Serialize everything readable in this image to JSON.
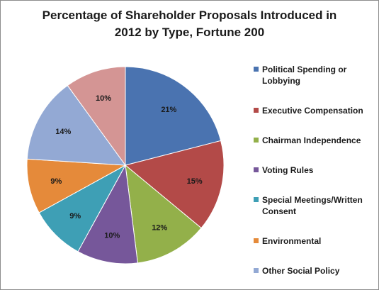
{
  "chart_data": {
    "type": "pie",
    "title_lines": [
      "Percentage of Shareholder Proposals Introduced in",
      "2012 by Type, Fortune 200"
    ],
    "slices": [
      {
        "name": "Political Spending or Lobbying",
        "legend_lines": [
          "Political Spending or",
          "Lobbying"
        ],
        "value": 21,
        "label": "21%",
        "color": "#4a73b0"
      },
      {
        "name": "Executive Compensation",
        "legend_lines": [
          "Executive Compensation"
        ],
        "value": 15,
        "label": "15%",
        "color": "#b34a48"
      },
      {
        "name": "Chairman Independence",
        "legend_lines": [
          "Chairman Independence"
        ],
        "value": 12,
        "label": "12%",
        "color": "#93b04a"
      },
      {
        "name": "Voting Rules",
        "legend_lines": [
          "Voting Rules"
        ],
        "value": 10,
        "label": "10%",
        "color": "#76579a"
      },
      {
        "name": "Special Meetings/Written Consent",
        "legend_lines": [
          "Special Meetings/Written",
          "Consent"
        ],
        "value": 9,
        "label": "9%",
        "color": "#3e9fb5"
      },
      {
        "name": "Environmental",
        "legend_lines": [
          "Environmental"
        ],
        "value": 9,
        "label": "9%",
        "color": "#e58a3a"
      },
      {
        "name": "Other Social Policy",
        "legend_lines": [
          "Other Social Policy"
        ],
        "value": 14,
        "label": "14%",
        "color": "#93a9d4"
      },
      {
        "name": "",
        "legend_lines": [],
        "value": 10,
        "label": "10%",
        "color": "#d49594"
      }
    ],
    "legend_position": "right"
  }
}
